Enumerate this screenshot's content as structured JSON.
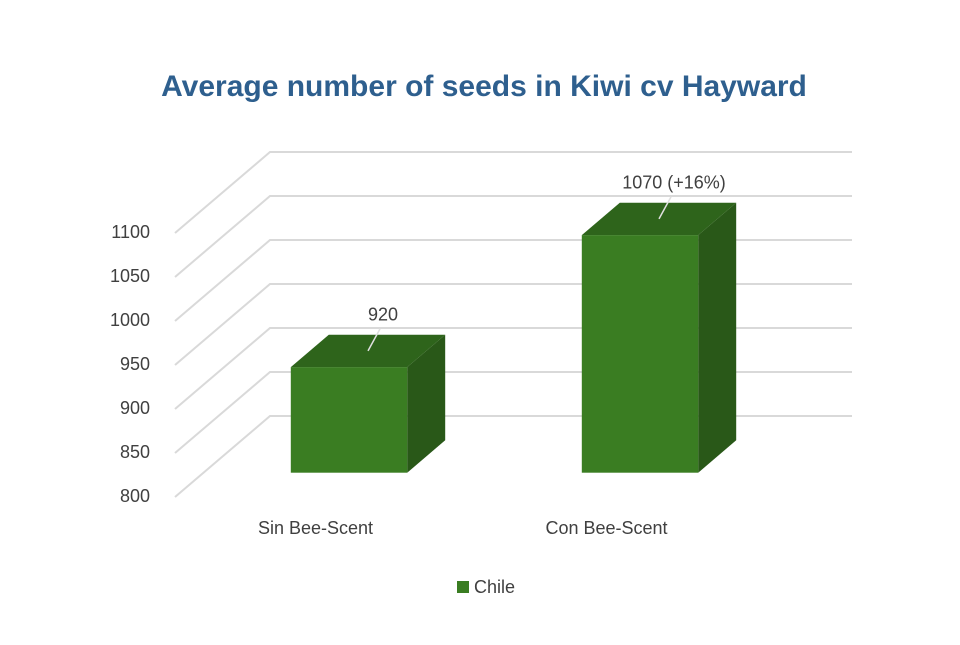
{
  "chart_data": {
    "type": "bar3d",
    "title": "Average number of seeds in Kiwi cv Hayward",
    "categories": [
      "Sin Bee-Scent",
      "Con Bee-Scent"
    ],
    "series": [
      {
        "name": "Chile",
        "color": "#3a7d22",
        "values": [
          920,
          1070
        ],
        "value_labels": [
          "920",
          "1070 (+16%)"
        ]
      }
    ],
    "ylim": [
      800,
      1100
    ],
    "yticks": [
      800,
      850,
      900,
      950,
      1000,
      1050,
      1100
    ],
    "grid": true,
    "legend": "bottom"
  }
}
